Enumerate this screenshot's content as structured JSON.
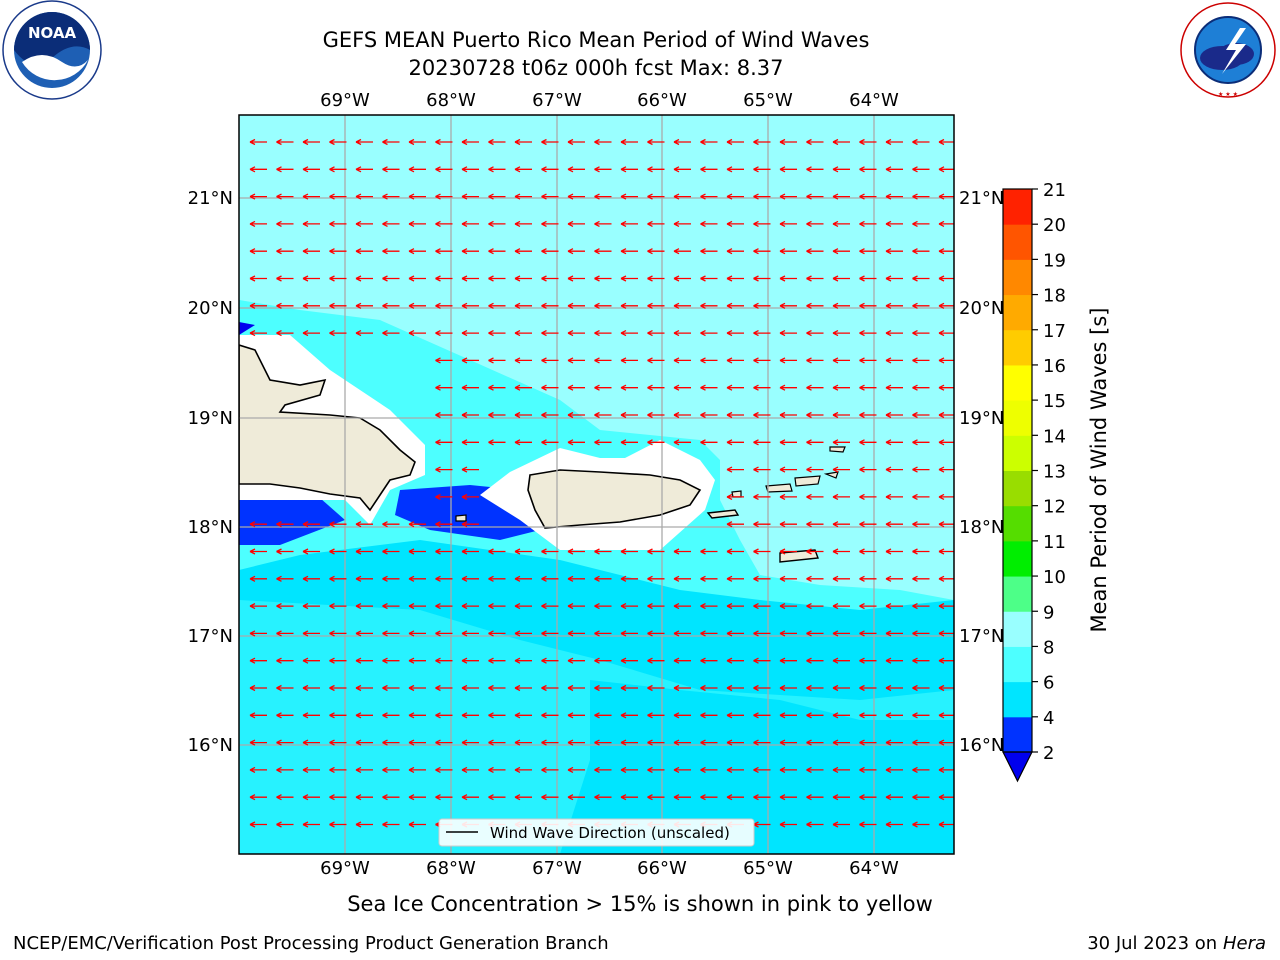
{
  "header": {
    "title_line1": "GEFS MEAN Puerto Rico Mean Period of Wind Waves",
    "title_line2": "20230728 t06z 000h fcst   Max: 8.37"
  },
  "logos": {
    "left": "NOAA",
    "left_ring_text": "NATIONAL OCEANIC AND ATMOSPHERIC ADMINISTRATION · U.S. DEPARTMENT OF COMMERCE",
    "right_ring_text": "NATIONAL WEATHER SERVICE"
  },
  "map": {
    "lon_labels": [
      "69°W",
      "68°W",
      "67°W",
      "66°W",
      "65°W",
      "64°W"
    ],
    "lat_labels": [
      "21°N",
      "20°N",
      "19°N",
      "18°N",
      "17°N",
      "16°N"
    ],
    "legend_label": "Wind Wave Direction (unscaled)",
    "arrow_color": "#ff0000",
    "land_color": "#efebd9"
  },
  "colorbar": {
    "label": "Mean Period of Wind Waves [s]",
    "ticks": [
      "2",
      "4",
      "6",
      "8",
      "9",
      "10",
      "11",
      "12",
      "13",
      "14",
      "15",
      "16",
      "17",
      "18",
      "19",
      "20",
      "21"
    ],
    "colors": [
      "#0033ff",
      "#00e5ff",
      "#4dffff",
      "#99ffff",
      "#4dff88",
      "#00ee00",
      "#55dd00",
      "#99dd00",
      "#ccff00",
      "#eeff00",
      "#ffff00",
      "#ffcc00",
      "#ffaa00",
      "#ff8800",
      "#ff5500",
      "#ff2200"
    ],
    "extend_color": "#0000ee"
  },
  "notes": {
    "ice": "Sea Ice Concentration > 15% is shown in pink to yellow",
    "footer_left": "NCEP/EMC/Verification Post Processing Product Generation Branch",
    "footer_date": "30 Jul 2023 on ",
    "footer_host": "Hera"
  }
}
